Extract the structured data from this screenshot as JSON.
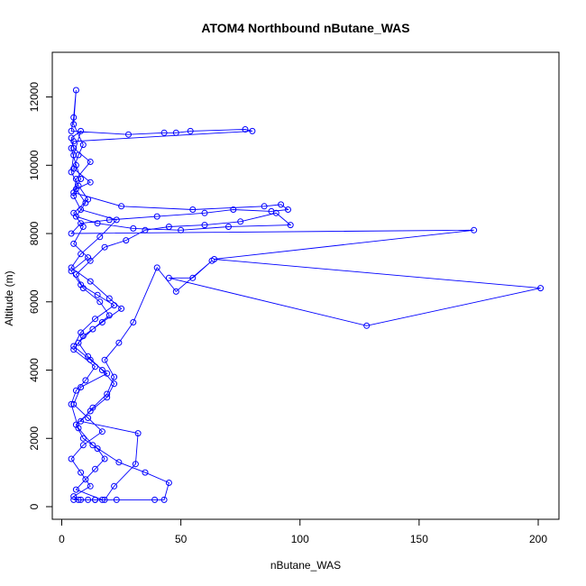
{
  "chart_data": {
    "type": "line",
    "title": "ATOM4 Northbound nButane_WAS",
    "xlabel": "nButane_WAS",
    "ylabel": "Altitude (m)",
    "xlim": [
      0,
      200
    ],
    "ylim": [
      0,
      12200
    ],
    "x_ticks": [
      0,
      50,
      100,
      150,
      200
    ],
    "x_tick_labels": [
      "0",
      "50",
      "100",
      "150",
      "200"
    ],
    "y_ticks": [
      0,
      2000,
      4000,
      6000,
      8000,
      10000,
      12000
    ],
    "y_tick_labels": [
      "0",
      "2000",
      "4000",
      "6000",
      "8000",
      "10000",
      "12000"
    ],
    "grid": false,
    "legend": "none",
    "color": "#0000ff",
    "marker": "open-circle",
    "series": [
      {
        "values_xy": [
          [
            5,
            200
          ],
          [
            8,
            200
          ],
          [
            11,
            200
          ],
          [
            14,
            200
          ],
          [
            17,
            200
          ],
          [
            6,
            500
          ],
          [
            10,
            800
          ],
          [
            14,
            1100
          ],
          [
            18,
            1400
          ],
          [
            15,
            1700
          ],
          [
            9,
            2000
          ],
          [
            6,
            2400
          ],
          [
            12,
            2800
          ],
          [
            19,
            3200
          ],
          [
            22,
            3600
          ],
          [
            17,
            4000
          ],
          [
            11,
            4400
          ],
          [
            7,
            4800
          ],
          [
            13,
            5200
          ],
          [
            20,
            5600
          ],
          [
            16,
            6000
          ],
          [
            9,
            6400
          ],
          [
            6,
            6800
          ],
          [
            12,
            7200
          ],
          [
            18,
            7600
          ],
          [
            27,
            7800
          ],
          [
            35,
            8100
          ],
          [
            45,
            8200
          ],
          [
            60,
            8250
          ],
          [
            75,
            8350
          ],
          [
            90,
            8600
          ],
          [
            96,
            8250
          ],
          [
            70,
            8200
          ],
          [
            50,
            8100
          ],
          [
            30,
            8150
          ],
          [
            15,
            8300
          ],
          [
            6,
            8500
          ],
          [
            10,
            8900
          ],
          [
            6,
            9300
          ],
          [
            12,
            9500
          ],
          [
            5,
            9900
          ],
          [
            7,
            10300
          ],
          [
            9,
            10600
          ],
          [
            5,
            11200
          ],
          [
            6,
            12200
          ],
          [
            5,
            11400
          ],
          [
            4,
            11000
          ],
          [
            28,
            10900
          ],
          [
            43,
            10950
          ],
          [
            48,
            10950
          ],
          [
            54,
            11000
          ],
          [
            77,
            11050
          ],
          [
            80,
            11000
          ],
          [
            5,
            10700
          ],
          [
            4,
            10500
          ],
          [
            6,
            10000
          ],
          [
            8,
            9600
          ],
          [
            5,
            9200
          ],
          [
            25,
            8800
          ],
          [
            55,
            8700
          ],
          [
            85,
            8800
          ],
          [
            92,
            8850
          ],
          [
            95,
            8700
          ],
          [
            88,
            8650
          ],
          [
            72,
            8700
          ],
          [
            60,
            8600
          ],
          [
            40,
            8500
          ],
          [
            20,
            8400
          ],
          [
            8,
            8300
          ],
          [
            4,
            8000
          ],
          [
            173,
            8100
          ],
          [
            64,
            7250
          ],
          [
            201,
            6400
          ],
          [
            128,
            5300
          ],
          [
            45,
            6700
          ],
          [
            55,
            6700
          ],
          [
            63,
            7200
          ],
          [
            48,
            6300
          ],
          [
            40,
            7000
          ],
          [
            30,
            5400
          ],
          [
            24,
            4800
          ],
          [
            18,
            4300
          ],
          [
            22,
            3800
          ],
          [
            19,
            3300
          ],
          [
            13,
            2900
          ],
          [
            8,
            2500
          ],
          [
            32,
            2150
          ],
          [
            31,
            1250
          ],
          [
            22,
            600
          ],
          [
            18,
            200
          ],
          [
            39,
            200
          ],
          [
            43,
            200
          ],
          [
            45,
            700
          ],
          [
            35,
            1000
          ],
          [
            24,
            1300
          ],
          [
            13,
            1800
          ],
          [
            7,
            2300
          ],
          [
            4,
            3000
          ],
          [
            6,
            3400
          ],
          [
            10,
            3700
          ],
          [
            14,
            4100
          ],
          [
            5,
            4600
          ],
          [
            9,
            5000
          ],
          [
            17,
            5400
          ],
          [
            25,
            5800
          ],
          [
            20,
            6100
          ],
          [
            12,
            6600
          ],
          [
            4,
            7000
          ],
          [
            8,
            7400
          ],
          [
            16,
            7900
          ],
          [
            23,
            8400
          ],
          [
            8,
            8700
          ],
          [
            5,
            9100
          ],
          [
            6,
            9600
          ],
          [
            12,
            10100
          ],
          [
            5,
            10500
          ],
          [
            4,
            10800
          ],
          [
            8,
            11000
          ],
          [
            5,
            10300
          ],
          [
            4,
            9800
          ],
          [
            7,
            9400
          ],
          [
            11,
            9000
          ],
          [
            5,
            8600
          ],
          [
            9,
            8200
          ],
          [
            5,
            7700
          ],
          [
            11,
            7300
          ],
          [
            4,
            6900
          ],
          [
            8,
            6500
          ],
          [
            15,
            6200
          ],
          [
            22,
            5900
          ],
          [
            14,
            5500
          ],
          [
            8,
            5100
          ],
          [
            5,
            4700
          ],
          [
            12,
            4300
          ],
          [
            19,
            3900
          ],
          [
            8,
            3500
          ],
          [
            5,
            3000
          ],
          [
            11,
            2600
          ],
          [
            17,
            2200
          ],
          [
            9,
            1800
          ],
          [
            4,
            1400
          ],
          [
            8,
            1000
          ],
          [
            12,
            600
          ],
          [
            5,
            300
          ],
          [
            7,
            200
          ],
          [
            14,
            200
          ],
          [
            23,
            200
          ]
        ]
      }
    ]
  }
}
